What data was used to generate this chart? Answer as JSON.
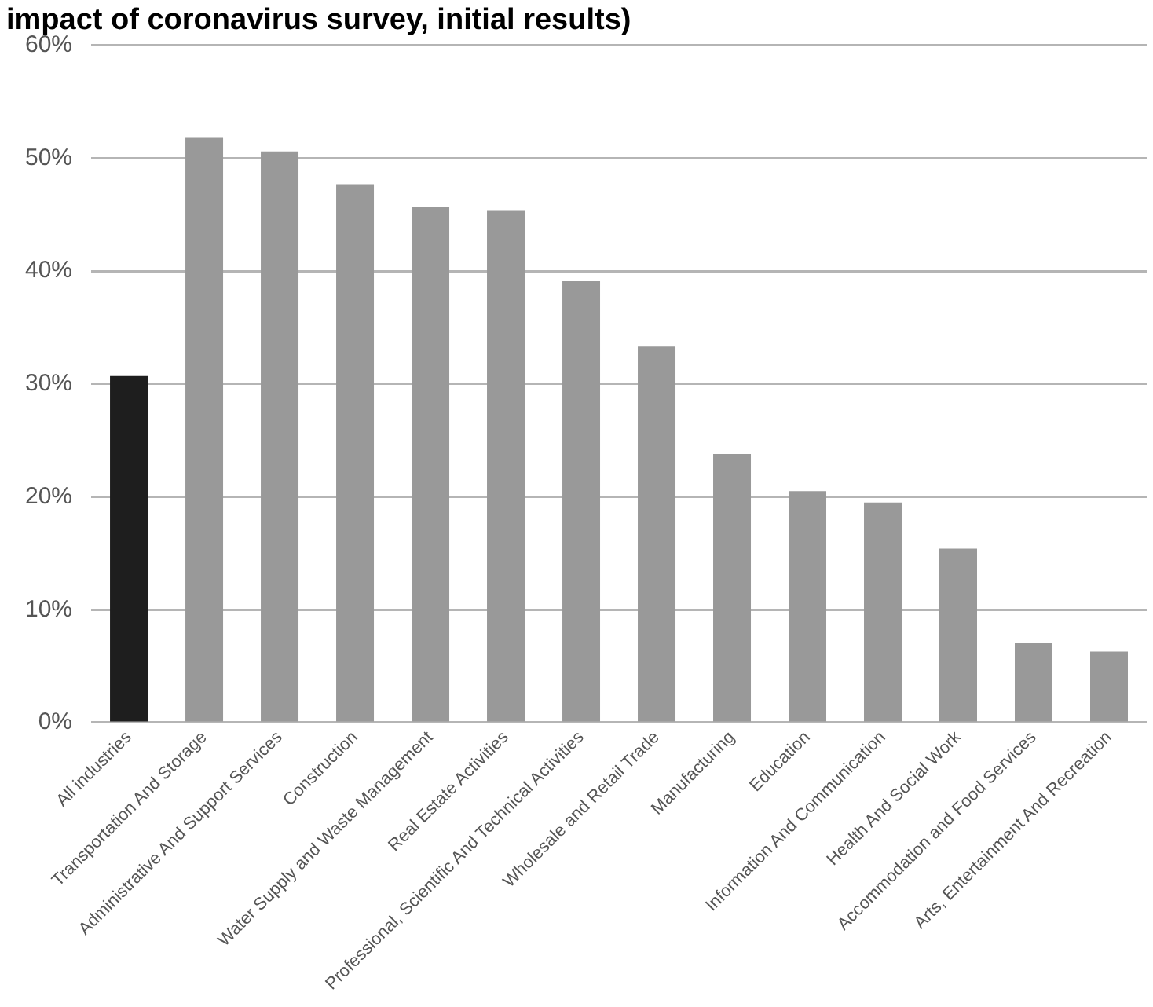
{
  "chart_data": {
    "type": "bar",
    "title": "impact of coronavirus survey, initial results)",
    "categories": [
      "All industries",
      "Transportation And Storage",
      "Administrative And Support Services",
      "Construction",
      "Water Supply and Waste Management",
      "Real Estate Activities",
      "Professional, Scientific And Technical Activities",
      "Wholesale and Retail Trade",
      "Manufacturing",
      "Education",
      "Information And Communication",
      "Health And Social Work",
      "Accommodation and Food Services",
      "Arts, Entertainment And Recreation"
    ],
    "values": [
      30.7,
      51.8,
      50.6,
      47.7,
      45.7,
      45.4,
      39.1,
      33.3,
      23.8,
      20.5,
      19.5,
      15.4,
      7.1,
      6.3
    ],
    "colors": [
      "#1e1e1e",
      "#999999",
      "#999999",
      "#999999",
      "#999999",
      "#999999",
      "#999999",
      "#999999",
      "#999999",
      "#999999",
      "#999999",
      "#999999",
      "#999999",
      "#999999"
    ],
    "ylim": [
      0,
      60
    ],
    "yticks": [
      {
        "value": 0,
        "label": "0%"
      },
      {
        "value": 10,
        "label": "10%"
      },
      {
        "value": 20,
        "label": "20%"
      },
      {
        "value": 30,
        "label": "30%"
      },
      {
        "value": 40,
        "label": "40%"
      },
      {
        "value": 50,
        "label": "50%"
      },
      {
        "value": 60,
        "label": "60%"
      }
    ],
    "grid": "y"
  }
}
